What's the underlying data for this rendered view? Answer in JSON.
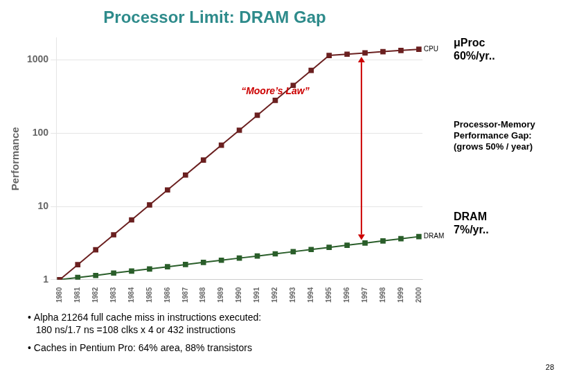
{
  "chart_data": {
    "type": "line",
    "title": "Processor Limit: DRAM Gap",
    "title_color": "#2E8B8B",
    "y_label": "Performance",
    "x": [
      1980,
      1981,
      1982,
      1983,
      1984,
      1985,
      1986,
      1987,
      1988,
      1989,
      1990,
      1991,
      1992,
      1993,
      1994,
      1995,
      1996,
      1997,
      1998,
      1999,
      2000
    ],
    "series": [
      {
        "name": "CPU",
        "color": "#6b2020",
        "marker": "square",
        "values": [
          1.0,
          1.6,
          2.56,
          4.1,
          6.55,
          10.49,
          16.78,
          26.84,
          42.95,
          68.72,
          109.95,
          175.92,
          281.47,
          450.36,
          720.57,
          1152.9,
          1200,
          1250,
          1300,
          1350,
          1400
        ]
      },
      {
        "name": "DRAM",
        "color": "#2a5e2a",
        "marker": "square",
        "values": [
          1.0,
          1.07,
          1.14,
          1.23,
          1.31,
          1.4,
          1.5,
          1.61,
          1.72,
          1.84,
          1.97,
          2.1,
          2.25,
          2.41,
          2.58,
          2.76,
          2.95,
          3.16,
          3.38,
          3.62,
          3.87
        ]
      }
    ],
    "xlim": [
      1979.8,
      2000.2
    ],
    "xticks": [
      1980,
      1981,
      1982,
      1983,
      1984,
      1985,
      1986,
      1987,
      1988,
      1989,
      1990,
      1991,
      1992,
      1993,
      1994,
      1995,
      1996,
      1997,
      1998,
      1999,
      2000
    ],
    "ylim": [
      1,
      2000
    ],
    "yticks": [
      1,
      10,
      100,
      1000
    ],
    "log": "y",
    "grid": "y",
    "annotations": [
      {
        "text": "“Moore’s Law”",
        "x": 1992,
        "y": 320,
        "color": "#cc0000"
      }
    ],
    "gap_arrow": {
      "x": 1996.8,
      "from": 3.476,
      "to": 1104,
      "color": "#cc0000"
    },
    "side_notes": [
      "μProc\n60%/yr..",
      "Processor-Memory\nPerformance Gap:\n(grows 50% / year)",
      "DRAM\n7%/yr.."
    ],
    "footnotes": [
      "• Alpha 21264 full cache miss in instructions executed:\n   180 ns/1.7 ns =108 clks x 4 or 432 instructions",
      "• Caches in Pentium Pro: 64% area, 88% transistors"
    ],
    "page_number": "28"
  }
}
